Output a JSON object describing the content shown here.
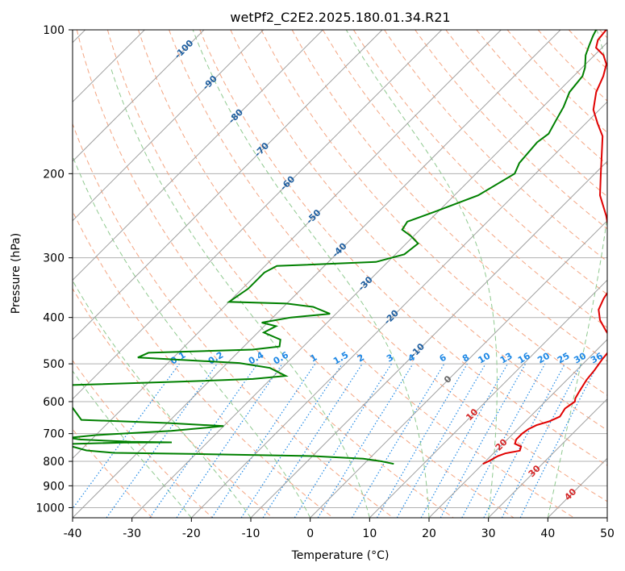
{
  "chart_data": {
    "type": "line",
    "title": "wetPf2_C2E2.2025.180.01.34.R21",
    "xlabel": "Temperature (°C)",
    "ylabel": "Pressure (hPa)",
    "xlim": [
      -40,
      50
    ],
    "ylim": [
      1050,
      100
    ],
    "y_scale": "log",
    "grid": true,
    "x_ticks": [
      -40,
      -30,
      -20,
      -10,
      0,
      10,
      20,
      30,
      40,
      50
    ],
    "y_ticks": [
      100,
      200,
      300,
      400,
      500,
      600,
      700,
      800,
      900,
      1000
    ],
    "colors": {
      "temperature": "#e00000",
      "dewpoint": "#008000",
      "isotherm": "#a0a0a0",
      "dry_adiabat": "#f4a582",
      "moist_adiabat": "#8fc98f",
      "mixing_ratio": "#1e88e5",
      "isotherm_label": "#1f5fa0",
      "mixing_label": "#1e88e5",
      "adiabat_label": "#d62728"
    },
    "isotherm_labels": [
      "-100",
      "-90",
      "-80",
      "-70",
      "-60",
      "-50",
      "-40",
      "-30",
      "-20",
      "-10",
      "0",
      "10",
      "20",
      "30",
      "40"
    ],
    "mixing_ratio_labels": [
      "0.1",
      "0.2",
      "0.4",
      "0.6",
      "1",
      "1.5",
      "2",
      "3",
      "4",
      "6",
      "8",
      "10",
      "13",
      "16",
      "20",
      "25",
      "30",
      "36"
    ],
    "series": [
      {
        "key": "temperature",
        "points": [
          [
            20.0,
            810
          ],
          [
            20.5,
            800
          ],
          [
            21.2,
            780
          ],
          [
            22.0,
            770
          ],
          [
            24.0,
            760
          ],
          [
            23.5,
            745
          ],
          [
            22.0,
            735
          ],
          [
            21.5,
            720
          ],
          [
            21.5,
            700
          ],
          [
            21.8,
            685
          ],
          [
            22.5,
            672
          ],
          [
            24.0,
            660
          ],
          [
            25.0,
            645
          ],
          [
            24.5,
            620
          ],
          [
            25.0,
            600
          ],
          [
            24.5,
            590
          ],
          [
            24.0,
            570
          ],
          [
            23.3,
            540
          ],
          [
            23.0,
            515
          ],
          [
            22.5,
            490
          ],
          [
            22.3,
            475
          ],
          [
            21.8,
            462
          ],
          [
            20.8,
            445
          ],
          [
            18.5,
            428
          ],
          [
            15.5,
            405
          ],
          [
            13.5,
            385
          ],
          [
            12.5,
            365
          ],
          [
            11.8,
            345
          ],
          [
            10.0,
            325
          ],
          [
            7.0,
            300
          ],
          [
            3.0,
            270
          ],
          [
            -1.0,
            245
          ],
          [
            -5.5,
            222
          ],
          [
            -9.0,
            200
          ],
          [
            -12.5,
            180
          ],
          [
            -15.0,
            167
          ],
          [
            -18.0,
            157
          ],
          [
            -21.0,
            147
          ],
          [
            -23.5,
            135
          ],
          [
            -25.0,
            125
          ],
          [
            -26.5,
            118
          ],
          [
            -28.5,
            113
          ],
          [
            -31.0,
            109
          ],
          [
            -32.0,
            105
          ],
          [
            -32.3,
            100
          ]
        ]
      },
      {
        "key": "dewpoint",
        "points": [
          [
            5.0,
            810
          ],
          [
            2.5,
            800
          ],
          [
            -1.0,
            790
          ],
          [
            -10.0,
            780
          ],
          [
            -30.0,
            772
          ],
          [
            -40.0,
            769
          ],
          [
            -44.0,
            768
          ],
          [
            -49.0,
            759
          ],
          [
            -54.0,
            736
          ],
          [
            -44.0,
            731
          ],
          [
            -36.0,
            730
          ],
          [
            -43.0,
            728
          ],
          [
            -52.0,
            720
          ],
          [
            -54.0,
            714
          ],
          [
            -50.0,
            705
          ],
          [
            -38.0,
            691
          ],
          [
            -30.0,
            675
          ],
          [
            -40.0,
            665
          ],
          [
            -55.0,
            655
          ],
          [
            -65.0,
            555
          ],
          [
            -45.0,
            545
          ],
          [
            -33.0,
            538
          ],
          [
            -28.0,
            530
          ],
          [
            -32.0,
            510
          ],
          [
            -38.0,
            498
          ],
          [
            -56.0,
            485
          ],
          [
            -55.0,
            474
          ],
          [
            -38.0,
            467
          ],
          [
            -34.0,
            460
          ],
          [
            -35.0,
            445
          ],
          [
            -39.0,
            430
          ],
          [
            -38.0,
            417
          ],
          [
            -41.0,
            410
          ],
          [
            -37.0,
            400
          ],
          [
            -31.0,
            393
          ],
          [
            -35.0,
            380
          ],
          [
            -40.0,
            374
          ],
          [
            -50.0,
            371
          ],
          [
            -49.0,
            348
          ],
          [
            -49.0,
            322
          ],
          [
            -48.0,
            312
          ],
          [
            -32.0,
            306
          ],
          [
            -28.5,
            295
          ],
          [
            -28.0,
            280
          ],
          [
            -30.5,
            270
          ],
          [
            -33.0,
            262
          ],
          [
            -33.5,
            252
          ],
          [
            -30.5,
            240
          ],
          [
            -26.0,
            222
          ],
          [
            -23.5,
            200
          ],
          [
            -24.5,
            190
          ],
          [
            -25.0,
            172
          ],
          [
            -24.5,
            165
          ],
          [
            -25.5,
            155
          ],
          [
            -26.5,
            145
          ],
          [
            -28.0,
            135
          ],
          [
            -28.5,
            125
          ],
          [
            -29.5,
            120
          ],
          [
            -31.5,
            113
          ],
          [
            -32.5,
            108
          ],
          [
            -33.5,
            103
          ],
          [
            -34.0,
            100
          ]
        ]
      }
    ]
  }
}
